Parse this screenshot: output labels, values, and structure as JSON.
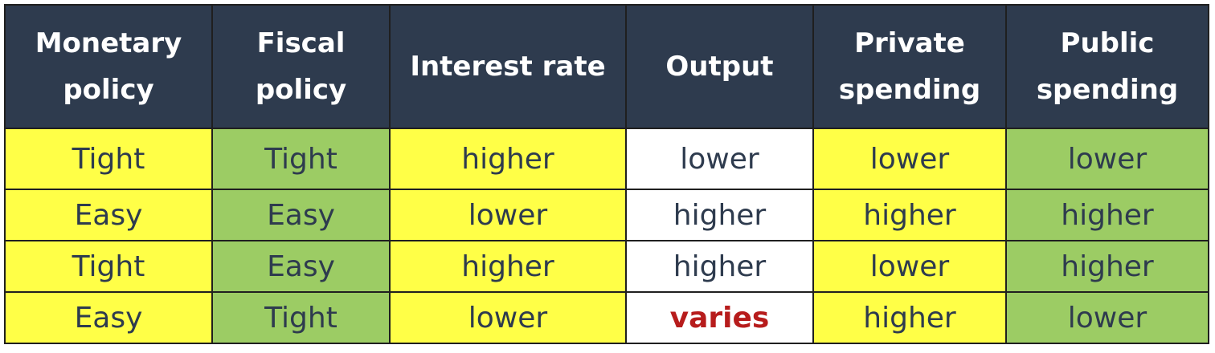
{
  "table": {
    "headers": [
      "Monetary\npolicy",
      "Fiscal\npolicy",
      "Interest rate",
      "Output",
      "Private\nspending",
      "Public\nspending"
    ],
    "rows": [
      [
        "Tight",
        "Tight",
        "higher",
        "lower",
        "lower",
        "lower"
      ],
      [
        "Easy",
        "Easy",
        "lower",
        "higher",
        "higher",
        "higher"
      ],
      [
        "Tight",
        "Easy",
        "higher",
        "higher",
        "lower",
        "higher"
      ],
      [
        "Easy",
        "Tight",
        "lower",
        "varies",
        "higher",
        "lower"
      ]
    ]
  },
  "colors": {
    "header_bg": "#2e3b4e",
    "header_text": "#ffffff",
    "cell_text": "#2e3b4e",
    "yellow": "#ffff47",
    "green": "#9ccc64",
    "white": "#ffffff",
    "emphasis": "#b71c1c"
  }
}
